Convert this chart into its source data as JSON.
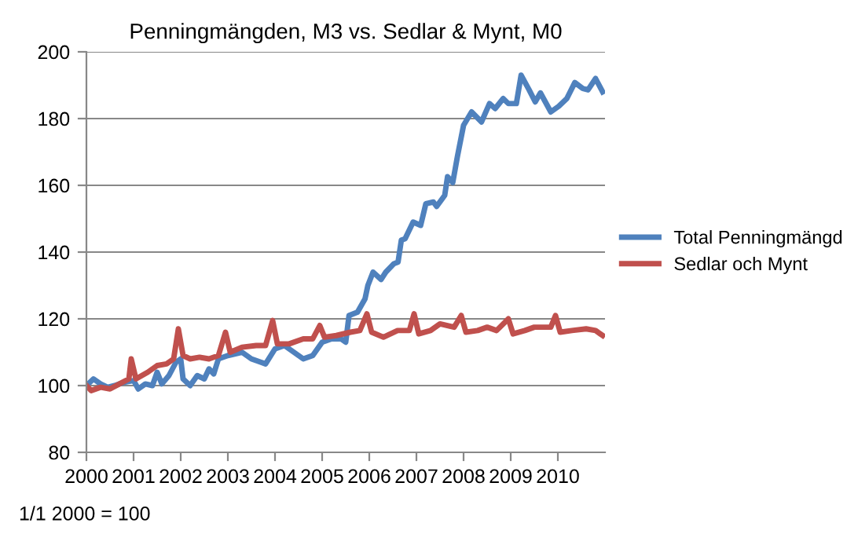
{
  "chart_data": {
    "type": "line",
    "title": "Penningmängden, M3 vs. Sedlar & Mynt, M0",
    "annotations": [
      "1/1 2000 = 100"
    ],
    "xlim": [
      2000,
      2011
    ],
    "xticks": [
      2000,
      2001,
      2002,
      2003,
      2004,
      2005,
      2006,
      2007,
      2008,
      2009,
      2010
    ],
    "ylim": [
      80,
      200
    ],
    "yticks": [
      80,
      100,
      120,
      140,
      160,
      180,
      200
    ],
    "grid": "y",
    "legend": "right",
    "marker": "none",
    "line_style": "solid",
    "series": [
      {
        "name": "Total Penningmängd",
        "color": "#4f81bd",
        "x": [
          2000.0,
          2000.15,
          2000.3,
          2000.45,
          2000.6,
          2000.8,
          2001.0,
          2001.1,
          2001.25,
          2001.4,
          2001.5,
          2001.6,
          2001.75,
          2001.9,
          2002.0,
          2002.05,
          2002.2,
          2002.35,
          2002.5,
          2002.6,
          2002.7,
          2002.8,
          2003.0,
          2003.3,
          2003.5,
          2003.7,
          2003.8,
          2004.0,
          2004.2,
          2004.4,
          2004.6,
          2004.8,
          2005.0,
          2005.2,
          2005.4,
          2005.5,
          2005.57,
          2005.75,
          2005.91,
          2005.97,
          2006.08,
          2006.25,
          2006.35,
          2006.52,
          2006.61,
          2006.68,
          2006.76,
          2006.93,
          2007.09,
          2007.2,
          2007.36,
          2007.43,
          2007.6,
          2007.66,
          2007.77,
          2007.87,
          2008.0,
          2008.17,
          2008.38,
          2008.55,
          2008.67,
          2008.84,
          2008.95,
          2009.12,
          2009.22,
          2009.39,
          2009.52,
          2009.63,
          2009.85,
          2010.02,
          2010.19,
          2010.36,
          2010.53,
          2010.64,
          2010.8,
          2010.95
        ],
        "values": [
          100,
          102,
          100.5,
          99.5,
          100,
          101,
          101.5,
          99,
          100.5,
          100,
          104,
          100.5,
          103,
          107,
          108,
          102,
          100,
          103,
          102,
          105,
          103.5,
          108,
          109,
          110,
          108,
          107,
          106.5,
          111,
          112,
          110,
          108,
          109,
          113,
          114,
          114,
          113,
          121,
          122,
          126,
          130,
          134,
          131.8,
          134,
          136.5,
          137,
          143.6,
          144,
          149,
          148,
          154.5,
          155,
          153.7,
          157,
          162.6,
          160.8,
          168.7,
          178,
          182,
          179,
          184.5,
          183,
          186,
          184.5,
          184.5,
          193,
          188.6,
          185,
          187.7,
          182,
          183.7,
          186,
          190.8,
          189,
          188.6,
          192,
          188
        ]
      },
      {
        "name": "Sedlar och Mynt",
        "color": "#c0504d",
        "x": [
          2000.0,
          2000.1,
          2000.3,
          2000.5,
          2000.7,
          2000.9,
          2000.95,
          2001.05,
          2001.3,
          2001.5,
          2001.7,
          2001.85,
          2001.95,
          2002.05,
          2002.2,
          2002.4,
          2002.6,
          2002.8,
          2002.95,
          2003.05,
          2003.3,
          2003.6,
          2003.8,
          2003.95,
          2004.05,
          2004.3,
          2004.6,
          2004.8,
          2004.95,
          2005.05,
          2005.3,
          2005.6,
          2005.8,
          2005.95,
          2006.05,
          2006.3,
          2006.6,
          2006.85,
          2006.95,
          2007.05,
          2007.3,
          2007.5,
          2007.8,
          2007.95,
          2008.05,
          2008.3,
          2008.5,
          2008.7,
          2008.95,
          2009.05,
          2009.3,
          2009.5,
          2009.7,
          2009.85,
          2009.95,
          2010.05,
          2010.3,
          2010.6,
          2010.8,
          2010.95
        ],
        "values": [
          100,
          98.5,
          99.5,
          99,
          100.5,
          102,
          108,
          102,
          104,
          106,
          106.5,
          108,
          117,
          109,
          108,
          108.5,
          108,
          109,
          116,
          110,
          111.5,
          112,
          112,
          119.5,
          112.5,
          112.5,
          114,
          114,
          118,
          114.5,
          115,
          116,
          116.5,
          121.5,
          116,
          114.5,
          116.5,
          116.5,
          121.5,
          115.5,
          116.5,
          118.5,
          117.5,
          121,
          116,
          116.5,
          117.5,
          116.5,
          120,
          115.5,
          116.5,
          117.5,
          117.5,
          117.5,
          121,
          116,
          116.5,
          117,
          116.5,
          115
        ]
      }
    ]
  }
}
